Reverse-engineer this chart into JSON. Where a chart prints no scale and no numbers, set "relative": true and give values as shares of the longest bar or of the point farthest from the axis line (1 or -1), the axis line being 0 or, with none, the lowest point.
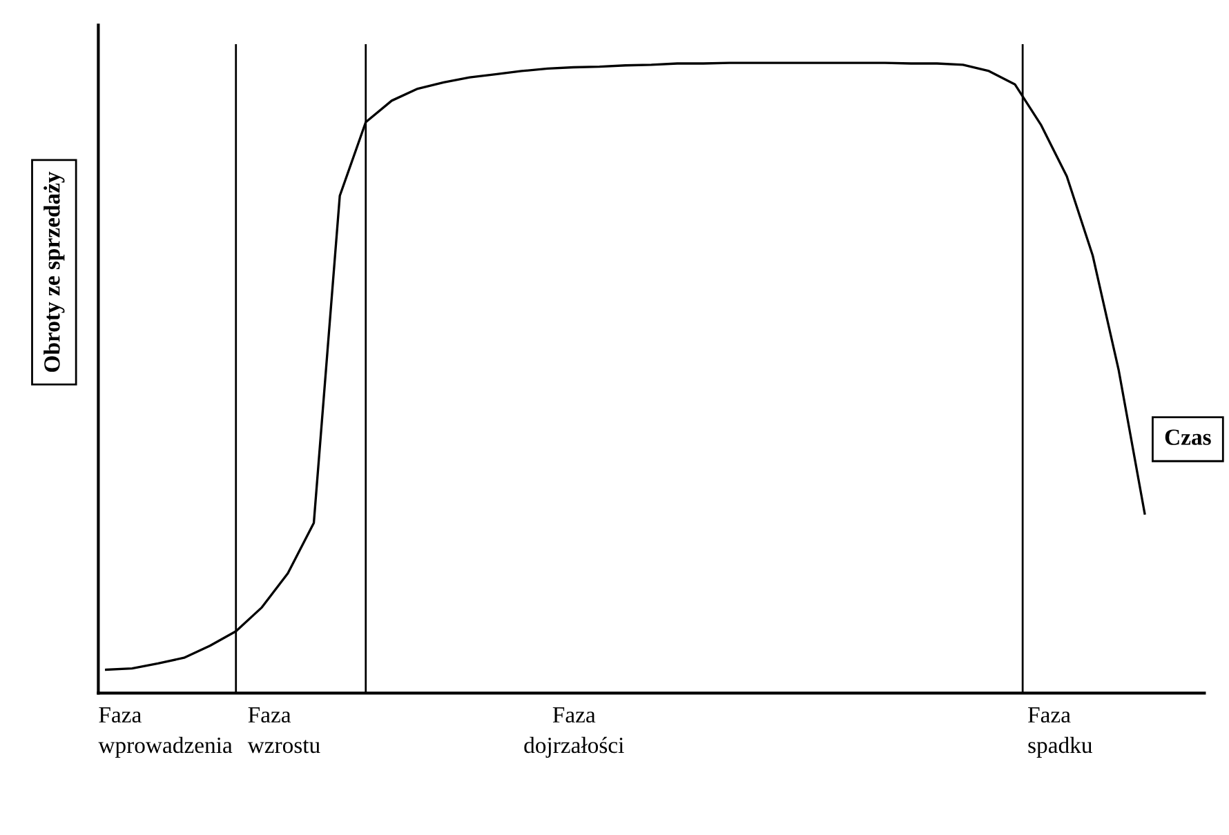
{
  "chart_data": {
    "type": "line",
    "relative": true,
    "xlabel": "Czas",
    "ylabel": "Obroty ze sprzedaży",
    "legend": false,
    "marker": "none",
    "line_style": "solid",
    "categories": [
      null,
      null,
      null,
      null,
      null,
      null,
      null,
      null,
      null,
      null,
      null,
      null,
      null,
      null,
      null,
      null,
      null,
      null,
      null,
      null,
      null,
      null,
      null,
      null,
      null,
      null,
      null,
      null,
      null,
      null,
      null,
      null,
      null,
      null,
      null,
      null,
      null,
      null,
      null,
      null,
      null
    ],
    "series": [
      {
        "color": "#000000",
        "values": [
          0.037,
          0.039,
          0.047,
          0.056,
          0.075,
          0.098,
          0.136,
          0.19,
          0.27,
          0.789,
          0.906,
          0.94,
          0.959,
          0.969,
          0.977,
          0.982,
          0.987,
          0.991,
          0.993,
          0.994,
          0.996,
          0.997,
          0.999,
          0.999,
          1,
          1,
          1,
          1,
          1,
          1,
          1,
          0.999,
          0.999,
          0.997,
          0.987,
          0.966,
          0.902,
          0.82,
          0.694,
          0.512,
          0.285
        ]
      }
    ],
    "annotations": [
      "Faza\nwprowadzenia",
      "Faza\nwzrostu",
      "Faza\ndojrzałości",
      "Faza\nspadku"
    ]
  }
}
